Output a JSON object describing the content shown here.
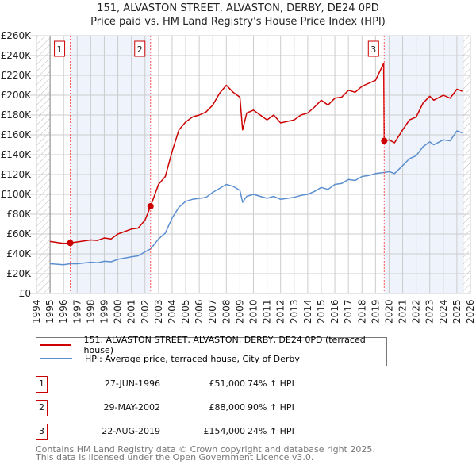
{
  "title_line1": "151, ALVASTON STREET, ALVASTON, DERBY, DE24 0PD",
  "title_line2": "Price paid vs. HM Land Registry's House Price Index (HPI)",
  "chart_data": {
    "type": "line",
    "title": "151, ALVASTON STREET, ALVASTON, DERBY, DE24 0PD / Price paid vs. HM Land Registry's House Price Index (HPI)",
    "xlim": [
      1994,
      2026
    ],
    "ylim": [
      0,
      260000
    ],
    "x_ticks": [
      "1994",
      "1995",
      "1996",
      "1997",
      "1998",
      "1999",
      "2000",
      "2001",
      "2002",
      "2003",
      "2004",
      "2005",
      "2006",
      "2007",
      "2008",
      "2009",
      "2010",
      "2011",
      "2012",
      "2013",
      "2014",
      "2015",
      "2016",
      "2017",
      "2018",
      "2019",
      "2020",
      "2021",
      "2022",
      "2023",
      "2024",
      "2025",
      "2026"
    ],
    "y_ticks": [
      {
        "v": 0,
        "label": "£0"
      },
      {
        "v": 20000,
        "label": "£20K"
      },
      {
        "v": 40000,
        "label": "£40K"
      },
      {
        "v": 60000,
        "label": "£60K"
      },
      {
        "v": 80000,
        "label": "£80K"
      },
      {
        "v": 100000,
        "label": "£100K"
      },
      {
        "v": 120000,
        "label": "£120K"
      },
      {
        "v": 140000,
        "label": "£140K"
      },
      {
        "v": 160000,
        "label": "£160K"
      },
      {
        "v": 180000,
        "label": "£180K"
      },
      {
        "v": 200000,
        "label": "£200K"
      },
      {
        "v": 220000,
        "label": "£220K"
      },
      {
        "v": 240000,
        "label": "£240K"
      },
      {
        "v": 260000,
        "label": "£260K"
      }
    ],
    "grid": true,
    "hatched_ranges": [
      [
        1994,
        1995
      ],
      [
        2025.45,
        2026
      ]
    ],
    "shaded_ranges": [
      [
        1996.49,
        2002.41
      ],
      [
        2019.64,
        2025.45
      ]
    ],
    "series": [
      {
        "name": "151, ALVASTON STREET, ALVASTON, DERBY, DE24 0PD (terraced house)",
        "color": "#cc0000",
        "x": [
          1995,
          1995.5,
          1996,
          1996.49,
          1997,
          1998,
          1998.5,
          1999,
          1999.5,
          2000,
          2001,
          2001.5,
          2002,
          2002.41,
          2003,
          2003.5,
          2004,
          2004.5,
          2005,
          2005.5,
          2006,
          2006.5,
          2007,
          2007.5,
          2008,
          2008.5,
          2009,
          2009.2,
          2009.5,
          2010,
          2010.5,
          2011,
          2011.5,
          2012,
          2013,
          2013.5,
          2014,
          2014.5,
          2015,
          2015.5,
          2016,
          2016.5,
          2017,
          2017.5,
          2018,
          2018.5,
          2019,
          2019.6,
          2019.64,
          2020,
          2020.4,
          2021,
          2021.5,
          2022,
          2022.5,
          2023,
          2023.3,
          2024,
          2024.5,
          2025,
          2025.4
        ],
        "y": [
          52500,
          51500,
          50500,
          51000,
          52000,
          54000,
          53500,
          56000,
          55000,
          60000,
          65000,
          66000,
          74000,
          88000,
          110000,
          118000,
          143000,
          165000,
          173000,
          178000,
          180000,
          183000,
          190000,
          202000,
          210000,
          203000,
          198000,
          165000,
          182000,
          185000,
          180000,
          175000,
          180000,
          172000,
          175000,
          180000,
          182000,
          188000,
          195000,
          190000,
          197000,
          198000,
          205000,
          203000,
          209000,
          212000,
          215000,
          232000,
          154000,
          155000,
          152000,
          165000,
          175000,
          178000,
          192000,
          199000,
          195000,
          200000,
          197000,
          206000,
          204000
        ]
      },
      {
        "name": "HPI: Average price, terraced house, City of Derby",
        "color": "#5b8fd0",
        "x": [
          1995,
          1995.5,
          1996,
          1996.49,
          1997,
          1998,
          1998.5,
          1999,
          1999.5,
          2000,
          2001,
          2001.5,
          2002,
          2002.41,
          2003,
          2003.5,
          2004,
          2004.5,
          2005,
          2005.5,
          2006,
          2006.5,
          2007,
          2007.5,
          2008,
          2008.5,
          2009,
          2009.2,
          2009.5,
          2010,
          2010.5,
          2011,
          2011.5,
          2012,
          2013,
          2013.5,
          2014,
          2014.5,
          2015,
          2015.5,
          2016,
          2016.5,
          2017,
          2017.5,
          2018,
          2018.5,
          2019,
          2019.6,
          2019.64,
          2020,
          2020.4,
          2021,
          2021.5,
          2022,
          2022.5,
          2023,
          2023.3,
          2024,
          2024.5,
          2025,
          2025.4
        ],
        "y": [
          30000,
          29500,
          29000,
          30000,
          30000,
          31500,
          31000,
          32500,
          32000,
          34500,
          37000,
          38000,
          42000,
          45000,
          55000,
          61000,
          76000,
          87000,
          93000,
          95000,
          96000,
          97000,
          102000,
          106000,
          110000,
          108000,
          104000,
          92000,
          98000,
          100000,
          98000,
          96000,
          98000,
          95000,
          97000,
          99000,
          100000,
          103000,
          107000,
          105000,
          110000,
          111000,
          115000,
          114000,
          118000,
          119000,
          121000,
          122000,
          122000,
          123000,
          121000,
          129000,
          136000,
          139000,
          148000,
          153000,
          150000,
          155000,
          154000,
          164000,
          162000
        ]
      }
    ],
    "sales": [
      {
        "id": "1",
        "x": 1996.49,
        "y": 51000
      },
      {
        "id": "2",
        "x": 2002.41,
        "y": 88000
      },
      {
        "id": "3",
        "x": 2019.64,
        "y": 154000
      }
    ]
  },
  "legend": {
    "property_label": "151, ALVASTON STREET, ALVASTON, DERBY, DE24 0PD (terraced house)",
    "hpi_label": "HPI: Average price, terraced house, City of Derby"
  },
  "transactions": [
    {
      "num": "1",
      "date": "27-JUN-1996",
      "price": "£51,000",
      "hpi": "74% ↑ HPI"
    },
    {
      "num": "2",
      "date": "29-MAY-2002",
      "price": "£88,000",
      "hpi": "90% ↑ HPI"
    },
    {
      "num": "3",
      "date": "22-AUG-2019",
      "price": "£154,000",
      "hpi": "24% ↑ HPI"
    }
  ],
  "footer": {
    "line1": "Contains HM Land Registry data © Crown copyright and database right 2025.",
    "line2": "This data is licensed under the Open Government Licence v3.0."
  }
}
